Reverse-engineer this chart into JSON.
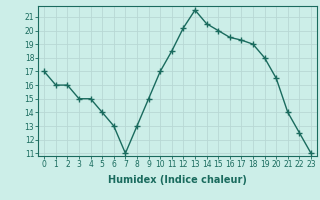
{
  "x": [
    0,
    1,
    2,
    3,
    4,
    5,
    6,
    7,
    8,
    9,
    10,
    11,
    12,
    13,
    14,
    15,
    16,
    17,
    18,
    19,
    20,
    21,
    22,
    23
  ],
  "y": [
    17,
    16,
    16,
    15,
    15,
    14,
    13,
    11,
    13,
    15,
    17,
    18.5,
    20.2,
    21.5,
    20.5,
    20,
    19.5,
    19.3,
    19,
    18,
    16.5,
    14,
    12.5,
    11
  ],
  "line_color": "#1a6b5e",
  "marker": "+",
  "marker_size": 4,
  "bg_color": "#cceee8",
  "grid_color": "#b8d8d4",
  "xlabel": "Humidex (Indice chaleur)",
  "ylim_min": 10.8,
  "ylim_max": 21.8,
  "xlim_min": -0.5,
  "xlim_max": 23.5,
  "yticks": [
    11,
    12,
    13,
    14,
    15,
    16,
    17,
    18,
    19,
    20,
    21
  ],
  "xticks": [
    0,
    1,
    2,
    3,
    4,
    5,
    6,
    7,
    8,
    9,
    10,
    11,
    12,
    13,
    14,
    15,
    16,
    17,
    18,
    19,
    20,
    21,
    22,
    23
  ],
  "tick_label_fontsize": 5.5,
  "xlabel_fontsize": 7,
  "spine_color": "#1a6b5e",
  "linewidth": 1.0,
  "marker_linewidth": 1.0
}
